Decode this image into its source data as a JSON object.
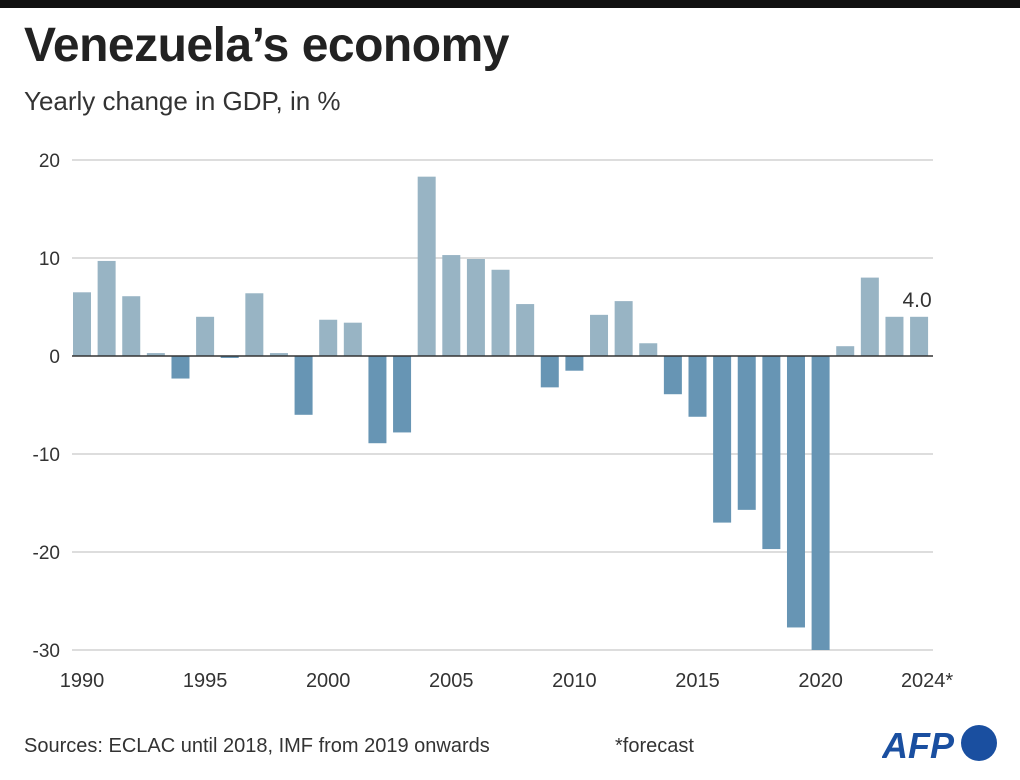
{
  "title": "Venezuela’s economy",
  "subtitle": "Yearly change in GDP, in %",
  "sources": "Sources: ECLAC until 2018, IMF from 2019 onwards",
  "footnote": "*forecast",
  "logo": "AFP",
  "colors": {
    "positive": "#98b4c4",
    "negative": "#6795b4",
    "logo": "#1a4fa0"
  },
  "chart_data": {
    "type": "bar",
    "title": "Venezuela’s economy",
    "subtitle": "Yearly change in GDP, in %",
    "x": [
      1990,
      1991,
      1992,
      1993,
      1994,
      1995,
      1996,
      1997,
      1998,
      1999,
      2000,
      2001,
      2002,
      2003,
      2004,
      2005,
      2006,
      2007,
      2008,
      2009,
      2010,
      2011,
      2012,
      2013,
      2014,
      2015,
      2016,
      2017,
      2018,
      2019,
      2020,
      2021,
      2022,
      2023,
      2024
    ],
    "values": [
      6.5,
      9.7,
      6.1,
      0.3,
      -2.3,
      4.0,
      -0.2,
      6.4,
      0.3,
      -6.0,
      3.7,
      3.4,
      -8.9,
      -7.8,
      18.3,
      10.3,
      9.9,
      8.8,
      5.3,
      -3.2,
      -1.5,
      4.2,
      5.6,
      1.3,
      -3.9,
      -6.2,
      -17.0,
      -15.7,
      -19.7,
      -27.7,
      -30.0,
      1.0,
      8.0,
      4.0,
      4.0
    ],
    "xtick_labels": [
      "1990",
      "1995",
      "2000",
      "2005",
      "2010",
      "2015",
      "2020",
      "2024*"
    ],
    "xtick_years": [
      1990,
      1995,
      2000,
      2005,
      2010,
      2015,
      2020,
      2024
    ],
    "yticks": [
      20,
      10,
      0,
      -10,
      -20,
      -30
    ],
    "ytick_labels": [
      "20",
      "10",
      "0",
      "-10",
      "-20",
      "-30"
    ],
    "ylim": [
      -30,
      20
    ],
    "grid": true,
    "annotation": {
      "year": 2024,
      "text": "4.0"
    }
  }
}
